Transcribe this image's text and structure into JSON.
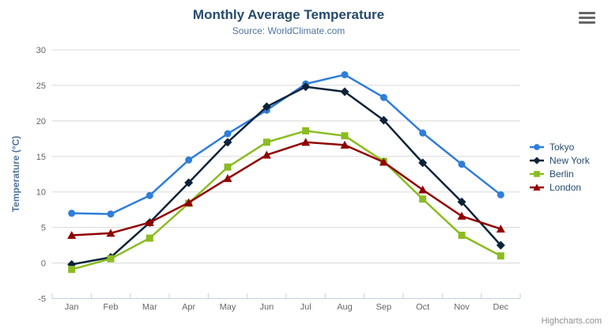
{
  "credits": "Highcharts.com",
  "chart_data": {
    "type": "line",
    "title": "Monthly Average Temperature",
    "subtitle": "Source: WorldClimate.com",
    "xlabel": "",
    "ylabel": "Temperature (°C)",
    "ylim": [
      -5,
      30
    ],
    "ytick_step": 5,
    "grid": true,
    "legend_position": "right",
    "categories": [
      "Jan",
      "Feb",
      "Mar",
      "Apr",
      "May",
      "Jun",
      "Jul",
      "Aug",
      "Sep",
      "Oct",
      "Nov",
      "Dec"
    ],
    "series": [
      {
        "name": "Tokyo",
        "color": "#2f7ed8",
        "marker": "circle",
        "values": [
          7.0,
          6.9,
          9.5,
          14.5,
          18.2,
          21.5,
          25.2,
          26.5,
          23.3,
          18.3,
          13.9,
          9.6
        ]
      },
      {
        "name": "New York",
        "color": "#0d233a",
        "marker": "diamond",
        "values": [
          -0.2,
          0.8,
          5.7,
          11.3,
          17.0,
          22.0,
          24.8,
          24.1,
          20.1,
          14.1,
          8.6,
          2.5
        ]
      },
      {
        "name": "Berlin",
        "color": "#8bbc21",
        "marker": "square",
        "values": [
          -0.9,
          0.6,
          3.5,
          8.4,
          13.5,
          17.0,
          18.6,
          17.9,
          14.3,
          9.0,
          3.9,
          1.0
        ]
      },
      {
        "name": "London",
        "color": "#910000",
        "marker": "triangle",
        "values": [
          3.9,
          4.2,
          5.7,
          8.5,
          11.9,
          15.2,
          17.0,
          16.6,
          14.2,
          10.3,
          6.6,
          4.8
        ]
      }
    ],
    "axis_colors": {
      "grid": "#d8d8d8",
      "axis_line": "#c0d0e0",
      "tick_label": "#666666",
      "y_title": "#4d759e"
    }
  }
}
